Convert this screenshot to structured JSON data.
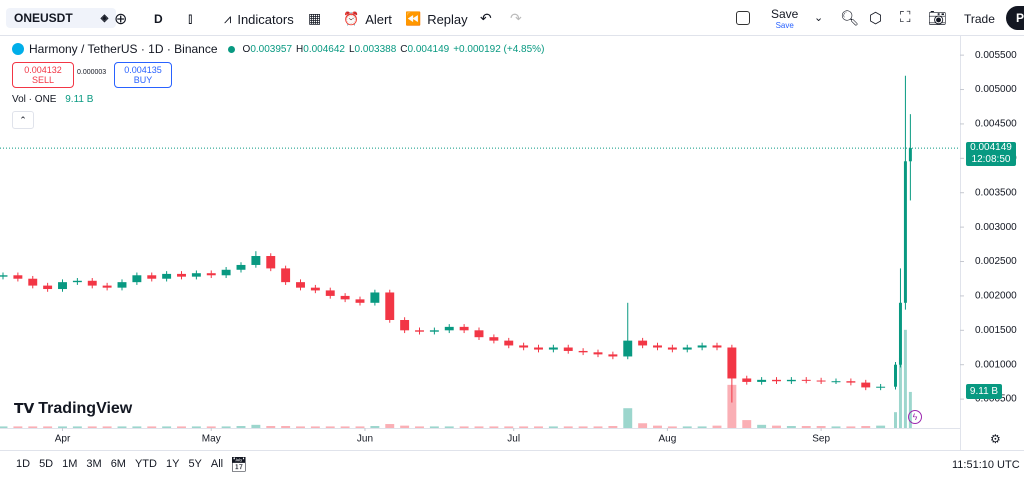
{
  "toolbar": {
    "symbol": "ONEUSDT",
    "interval": "D",
    "indicators": "Indicators",
    "alert": "Alert",
    "replay": "Replay",
    "save": "Save",
    "save_sub": "Save",
    "trade": "Trade",
    "publish": "Pu"
  },
  "order": {
    "sell_price": "0.004132",
    "sell": "SELL",
    "spread": "0.000003",
    "buy_price": "0.004135",
    "buy": "BUY"
  },
  "chart_data": {
    "type": "candlestick",
    "title": "Harmony / TetherUS · 1D · Binance",
    "legend_keys": [
      "O",
      "H",
      "L",
      "C"
    ],
    "change": "+0.000192 (+4.85%)",
    "volume_title": "Vol · ONE",
    "volume_last_label": "9.11 B",
    "volume_axis_label": "9.11 B",
    "countdown": "12:08:50",
    "up_color": "#089981",
    "down_color": "#f23645",
    "x": [
      0,
      3,
      6,
      9,
      12,
      15,
      18,
      21,
      24,
      27,
      30,
      33,
      36,
      39,
      42,
      45,
      48,
      51,
      54,
      57,
      60,
      63,
      66,
      69,
      72,
      75,
      78,
      81,
      84,
      87,
      90,
      93,
      96,
      99,
      102,
      105,
      108,
      111,
      114,
      117,
      120,
      123,
      126,
      129,
      132,
      135,
      138,
      141,
      144,
      147,
      150,
      153,
      156,
      159,
      162,
      165,
      168,
      171,
      174,
      177,
      180,
      181,
      182,
      183
    ],
    "open": [
      0.00228,
      0.0023,
      0.00225,
      0.00215,
      0.0021,
      0.0022,
      0.00222,
      0.00215,
      0.00212,
      0.0022,
      0.0023,
      0.00225,
      0.00232,
      0.00228,
      0.00233,
      0.0023,
      0.00238,
      0.00245,
      0.00258,
      0.0024,
      0.0022,
      0.00212,
      0.00208,
      0.002,
      0.00195,
      0.0019,
      0.00205,
      0.00165,
      0.0015,
      0.00148,
      0.0015,
      0.00155,
      0.0015,
      0.0014,
      0.00135,
      0.00128,
      0.00125,
      0.00122,
      0.00125,
      0.0012,
      0.00118,
      0.00115,
      0.00112,
      0.00135,
      0.00128,
      0.00125,
      0.00122,
      0.00125,
      0.00128,
      0.00125,
      0.0008,
      0.00075,
      0.00078,
      0.00076,
      0.00078,
      0.00077,
      0.00076,
      0.00076,
      0.00074,
      0.00067,
      0.00068,
      0.001,
      0.0019,
      0.003957
    ],
    "high": [
      0.00234,
      0.00234,
      0.00229,
      0.00219,
      0.00224,
      0.00226,
      0.00226,
      0.00219,
      0.00224,
      0.00234,
      0.00234,
      0.00236,
      0.00236,
      0.00237,
      0.00237,
      0.00242,
      0.00249,
      0.00265,
      0.00262,
      0.00244,
      0.00224,
      0.00216,
      0.00212,
      0.00204,
      0.00199,
      0.00209,
      0.00209,
      0.00169,
      0.00154,
      0.00154,
      0.00159,
      0.00159,
      0.00154,
      0.00144,
      0.00139,
      0.00132,
      0.00129,
      0.00129,
      0.00129,
      0.00124,
      0.00122,
      0.00119,
      0.0019,
      0.00139,
      0.00132,
      0.00129,
      0.00129,
      0.00132,
      0.00132,
      0.00129,
      0.00084,
      0.00082,
      0.00082,
      0.00082,
      0.00082,
      0.00081,
      0.0008,
      0.0008,
      0.00078,
      0.00072,
      0.00104,
      0.0024,
      0.0052,
      0.004642
    ],
    "low": [
      0.00224,
      0.00221,
      0.00211,
      0.00206,
      0.00206,
      0.00216,
      0.00211,
      0.00208,
      0.00208,
      0.00216,
      0.00221,
      0.00221,
      0.00224,
      0.00224,
      0.00226,
      0.00226,
      0.00234,
      0.00241,
      0.00236,
      0.00216,
      0.00208,
      0.00204,
      0.00196,
      0.00191,
      0.00186,
      0.00186,
      0.00161,
      0.00146,
      0.00144,
      0.00144,
      0.00146,
      0.00146,
      0.00136,
      0.00131,
      0.00124,
      0.00121,
      0.00118,
      0.00118,
      0.00116,
      0.00114,
      0.00111,
      0.00108,
      0.00108,
      0.00124,
      0.00121,
      0.00118,
      0.00118,
      0.00121,
      0.00121,
      0.00045,
      0.00071,
      0.00071,
      0.00072,
      0.00072,
      0.00073,
      0.00072,
      0.00072,
      0.0007,
      0.00063,
      0.00063,
      0.00064,
      0.00096,
      0.0018,
      0.003388
    ],
    "close": [
      0.0023,
      0.00225,
      0.00215,
      0.0021,
      0.0022,
      0.00222,
      0.00215,
      0.00212,
      0.0022,
      0.0023,
      0.00225,
      0.00232,
      0.00228,
      0.00233,
      0.0023,
      0.00238,
      0.00245,
      0.00258,
      0.0024,
      0.0022,
      0.00212,
      0.00208,
      0.002,
      0.00195,
      0.0019,
      0.00205,
      0.00165,
      0.0015,
      0.00148,
      0.0015,
      0.00155,
      0.0015,
      0.0014,
      0.00135,
      0.00128,
      0.00125,
      0.00122,
      0.00125,
      0.0012,
      0.00118,
      0.00115,
      0.00112,
      0.00135,
      0.00128,
      0.00125,
      0.00122,
      0.00125,
      0.00128,
      0.00125,
      0.0008,
      0.00075,
      0.00078,
      0.00076,
      0.00078,
      0.00077,
      0.00076,
      0.00076,
      0.00074,
      0.00067,
      0.00068,
      0.001,
      0.0019,
      0.003957,
      0.004149
    ],
    "volume": [
      0.4,
      0.4,
      0.4,
      0.4,
      0.4,
      0.4,
      0.4,
      0.4,
      0.4,
      0.4,
      0.4,
      0.4,
      0.4,
      0.4,
      0.4,
      0.4,
      0.5,
      0.8,
      0.5,
      0.5,
      0.4,
      0.4,
      0.4,
      0.4,
      0.4,
      0.5,
      1,
      0.6,
      0.4,
      0.4,
      0.4,
      0.4,
      0.4,
      0.4,
      0.4,
      0.4,
      0.4,
      0.4,
      0.4,
      0.4,
      0.4,
      0.5,
      5,
      1.2,
      0.6,
      0.4,
      0.4,
      0.4,
      0.6,
      10.9,
      2,
      0.8,
      0.6,
      0.5,
      0.5,
      0.5,
      0.4,
      0.4,
      0.5,
      0.6,
      4,
      17.7,
      24.8,
      9.11
    ],
    "vlim": [
      0,
      98
    ],
    "xlim": [
      0,
      192
    ],
    "xticks": [
      {
        "value": 12,
        "label": "Apr"
      },
      {
        "value": 42,
        "label": "May"
      },
      {
        "value": 73,
        "label": "Jun"
      },
      {
        "value": 103,
        "label": "Jul"
      },
      {
        "value": 134,
        "label": "Aug"
      },
      {
        "value": 165,
        "label": "Sep"
      }
    ],
    "ylim": [
      8e-05,
      0.00572
    ],
    "yticks": [
      {
        "value": 0.0005,
        "label": "0.000500"
      },
      {
        "value": 0.001,
        "label": "0.001000"
      },
      {
        "value": 0.0015,
        "label": "0.001500"
      },
      {
        "value": 0.002,
        "label": "0.002000"
      },
      {
        "value": 0.0025,
        "label": "0.002500"
      },
      {
        "value": 0.003,
        "label": "0.003000"
      },
      {
        "value": 0.0035,
        "label": "0.003500"
      },
      {
        "value": 0.004,
        "label": "0.004000"
      },
      {
        "value": 0.0045,
        "label": "0.004500"
      },
      {
        "value": 0.005,
        "label": "0.005000"
      },
      {
        "value": 0.0055,
        "label": "0.005500"
      }
    ]
  },
  "bottom": {
    "ranges": [
      "1D",
      "5D",
      "1M",
      "3M",
      "6M",
      "YTD",
      "1Y",
      "5Y",
      "All"
    ],
    "clock": "11:51:10 UTC"
  },
  "brand": "TradingView"
}
